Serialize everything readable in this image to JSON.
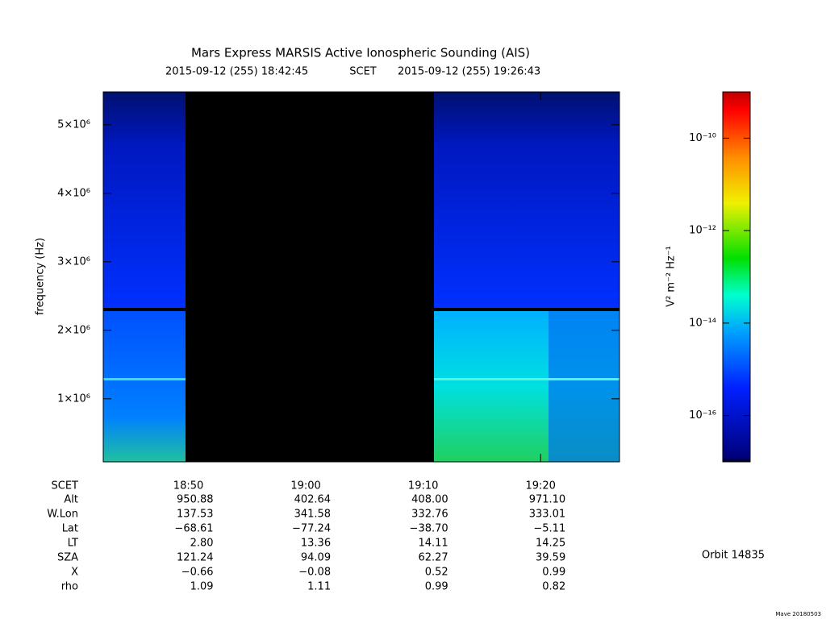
{
  "chart_data": {
    "type": "spectrogram",
    "title": "Mars Express MARSIS Active Ionospheric Sounding (AIS)",
    "subtitle": {
      "start": "2015-09-12 (255) 18:42:45",
      "label": "SCET",
      "end": "2015-09-12 (255) 19:26:43"
    },
    "y_label": "frequency (Hz)",
    "xlim": [
      "2015-09-12T18:42:45",
      "2015-09-12T19:26:43"
    ],
    "xticks": [
      {
        "value": "2015-09-12T18:50:00",
        "label": "18:50"
      },
      {
        "value": "2015-09-12T19:00:00",
        "label": "19:00"
      },
      {
        "value": "2015-09-12T19:10:00",
        "label": "19:10"
      },
      {
        "value": "2015-09-12T19:20:00",
        "label": "19:20"
      }
    ],
    "ylim": [
      80000,
      5480000
    ],
    "yticks": [
      {
        "value": 1000000,
        "label": "1×10⁶"
      },
      {
        "value": 2000000,
        "label": "2×10⁶"
      },
      {
        "value": 3000000,
        "label": "3×10⁶"
      },
      {
        "value": 4000000,
        "label": "4×10⁶"
      },
      {
        "value": 5000000,
        "label": "5×10⁶"
      }
    ],
    "colorbar": {
      "label": "V² m⁻² Hz⁻¹",
      "scale": "log",
      "clim": [
        1e-17,
        1e-09
      ],
      "ticks": [
        {
          "value": 1e-10,
          "label": "10⁻¹⁰"
        },
        {
          "value": 1e-12,
          "label": "10⁻¹²"
        },
        {
          "value": 1e-14,
          "label": "10⁻¹⁴"
        },
        {
          "value": 1e-16,
          "label": "10⁻¹⁶"
        }
      ]
    },
    "ephemeris": {
      "x_row_label": "SCET",
      "rows": [
        {
          "label": "Alt",
          "values": [
            "950.88",
            "402.64",
            "408.00",
            "971.10"
          ]
        },
        {
          "label": "W.Lon",
          "values": [
            "137.53",
            "341.58",
            "332.76",
            "333.01"
          ]
        },
        {
          "label": "Lat",
          "values": [
            "−68.61",
            "−77.24",
            "−38.70",
            "−5.11"
          ]
        },
        {
          "label": "LT",
          "values": [
            "2.80",
            "13.36",
            "14.11",
            "14.25"
          ]
        },
        {
          "label": "SZA",
          "values": [
            "121.24",
            "94.09",
            "62.27",
            "39.59"
          ]
        },
        {
          "label": "X",
          "values": [
            "−0.66",
            "−0.08",
            "0.52",
            "0.99"
          ]
        },
        {
          "label": "rho",
          "values": [
            "1.09",
            "1.11",
            "0.99",
            "0.82"
          ]
        }
      ]
    },
    "orbit": "Orbit 14835",
    "footer": "Mave 20180503"
  }
}
